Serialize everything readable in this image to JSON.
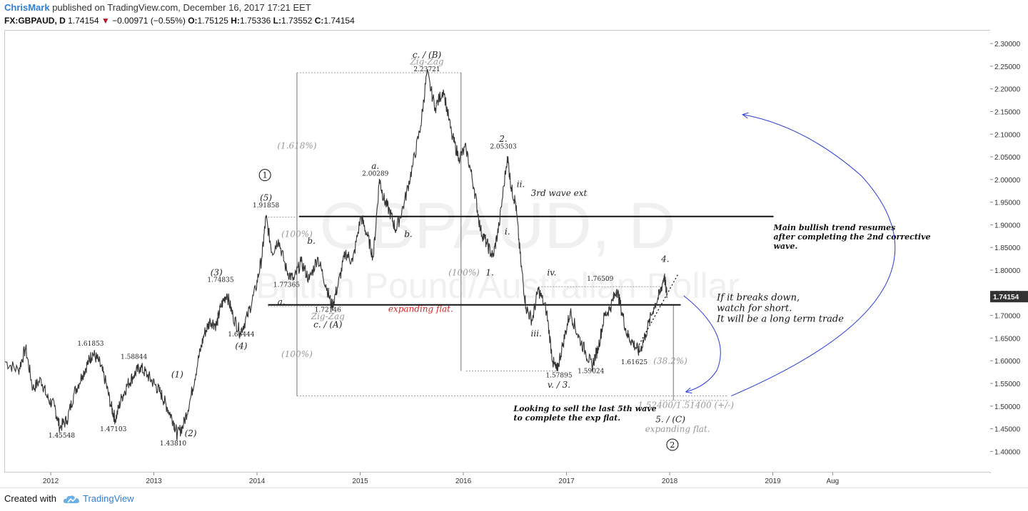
{
  "header": {
    "author": "ChrisMark",
    "published": "published on TradingView.com, December 16, 2017 17:21 EET",
    "symbol": "FX:GBPAUD, D",
    "last": "1.74154",
    "change": "−0.00971 (−0.55%)",
    "ohlc": {
      "o_label": "O:",
      "o": "1.75125",
      "h_label": "H:",
      "h": "1.75336",
      "l_label": "L:",
      "l": "1.73552",
      "c_label": "C:",
      "c": "1.74154"
    }
  },
  "watermark": {
    "symbol": "GBPAUD, D",
    "name": "British Pound/Australian Dollar"
  },
  "footer": {
    "created": "Created with",
    "brand": "TradingView"
  },
  "colors": {
    "price": "#333333",
    "level": "#111111",
    "fib": "#999999",
    "blue": "#2b3cd8",
    "badge": "#111111",
    "red": "#d62728"
  },
  "chart_data": {
    "type": "line",
    "series_name": "",
    "x_unit": "year",
    "xlim": [
      2011.55,
      2021.1
    ],
    "ylim": [
      1.355,
      2.33
    ],
    "y_ticks": [
      "2.30000",
      "2.25000",
      "2.20000",
      "2.15000",
      "2.10000",
      "2.05000",
      "2.00000",
      "1.95000",
      "1.90000",
      "1.85000",
      "1.80000",
      "1.75000",
      "1.70000",
      "1.65000",
      "1.60000",
      "1.55000",
      "1.50000",
      "1.45000",
      "1.40000"
    ],
    "y_tick_values": [
      2.3,
      2.25,
      2.2,
      2.15,
      2.1,
      2.05,
      2.0,
      1.95,
      1.9,
      1.85,
      1.8,
      1.75,
      1.7,
      1.65,
      1.6,
      1.55,
      1.5,
      1.45,
      1.4
    ],
    "x_ticks": [
      {
        "t": 2012.0,
        "label": "2012"
      },
      {
        "t": 2013.0,
        "label": "2013"
      },
      {
        "t": 2014.0,
        "label": "2014"
      },
      {
        "t": 2015.0,
        "label": "2015"
      },
      {
        "t": 2016.0,
        "label": "2016"
      },
      {
        "t": 2017.0,
        "label": "2017"
      },
      {
        "t": 2018.0,
        "label": "2018"
      },
      {
        "t": 2019.0,
        "label": "2019"
      },
      {
        "t": 2019.58,
        "label": "Aug"
      }
    ],
    "last_price_label": "1.74154",
    "last_price": 1.74154,
    "price_path": [
      [
        2011.55,
        1.6
      ],
      [
        2011.68,
        1.58
      ],
      [
        2011.75,
        1.63
      ],
      [
        2011.82,
        1.54
      ],
      [
        2011.9,
        1.56
      ],
      [
        2011.96,
        1.52
      ],
      [
        2012.03,
        1.5
      ],
      [
        2012.08,
        1.455
      ],
      [
        2012.15,
        1.47
      ],
      [
        2012.22,
        1.53
      ],
      [
        2012.3,
        1.57
      ],
      [
        2012.36,
        1.6
      ],
      [
        2012.4,
        1.6185
      ],
      [
        2012.46,
        1.6
      ],
      [
        2012.52,
        1.56
      ],
      [
        2012.58,
        1.5
      ],
      [
        2012.62,
        1.471
      ],
      [
        2012.68,
        1.52
      ],
      [
        2012.74,
        1.55
      ],
      [
        2012.8,
        1.57
      ],
      [
        2012.86,
        1.588
      ],
      [
        2012.93,
        1.57
      ],
      [
        2013.0,
        1.55
      ],
      [
        2013.06,
        1.53
      ],
      [
        2013.12,
        1.5
      ],
      [
        2013.18,
        1.47
      ],
      [
        2013.22,
        1.438
      ],
      [
        2013.28,
        1.46
      ],
      [
        2013.35,
        1.52
      ],
      [
        2013.42,
        1.6
      ],
      [
        2013.48,
        1.66
      ],
      [
        2013.54,
        1.69
      ],
      [
        2013.6,
        1.68
      ],
      [
        2013.64,
        1.72
      ],
      [
        2013.7,
        1.75
      ],
      [
        2013.76,
        1.7
      ],
      [
        2013.83,
        1.664
      ],
      [
        2013.9,
        1.7
      ],
      [
        2013.98,
        1.76
      ],
      [
        2014.04,
        1.83
      ],
      [
        2014.08,
        1.9186
      ],
      [
        2014.14,
        1.84
      ],
      [
        2014.2,
        1.87
      ],
      [
        2014.28,
        1.8
      ],
      [
        2014.35,
        1.78
      ],
      [
        2014.42,
        1.82
      ],
      [
        2014.5,
        1.78
      ],
      [
        2014.58,
        1.83
      ],
      [
        2014.66,
        1.77
      ],
      [
        2014.72,
        1.721
      ],
      [
        2014.78,
        1.77
      ],
      [
        2014.85,
        1.84
      ],
      [
        2014.92,
        1.82
      ],
      [
        2015.0,
        1.92
      ],
      [
        2015.06,
        1.88
      ],
      [
        2015.12,
        1.83
      ],
      [
        2015.18,
        2.003
      ],
      [
        2015.22,
        1.96
      ],
      [
        2015.28,
        1.93
      ],
      [
        2015.34,
        1.89
      ],
      [
        2015.42,
        1.95
      ],
      [
        2015.5,
        2.03
      ],
      [
        2015.58,
        2.12
      ],
      [
        2015.64,
        2.2372
      ],
      [
        2015.72,
        2.16
      ],
      [
        2015.8,
        2.2
      ],
      [
        2015.88,
        2.1
      ],
      [
        2015.95,
        2.05
      ],
      [
        2016.02,
        2.07
      ],
      [
        2016.1,
        1.98
      ],
      [
        2016.16,
        1.89
      ],
      [
        2016.22,
        1.86
      ],
      [
        2016.28,
        1.83
      ],
      [
        2016.34,
        1.9
      ],
      [
        2016.42,
        2.053
      ],
      [
        2016.46,
        1.98
      ],
      [
        2016.5,
        1.95
      ],
      [
        2016.55,
        1.82
      ],
      [
        2016.6,
        1.72
      ],
      [
        2016.66,
        1.69
      ],
      [
        2016.72,
        1.76
      ],
      [
        2016.8,
        1.71
      ],
      [
        2016.86,
        1.6
      ],
      [
        2016.9,
        1.579
      ],
      [
        2016.96,
        1.64
      ],
      [
        2017.03,
        1.71
      ],
      [
        2017.1,
        1.66
      ],
      [
        2017.18,
        1.62
      ],
      [
        2017.24,
        1.59
      ],
      [
        2017.3,
        1.63
      ],
      [
        2017.36,
        1.7
      ],
      [
        2017.42,
        1.72
      ],
      [
        2017.48,
        1.76
      ],
      [
        2017.52,
        1.72
      ],
      [
        2017.58,
        1.66
      ],
      [
        2017.64,
        1.64
      ],
      [
        2017.7,
        1.62
      ],
      [
        2017.76,
        1.66
      ],
      [
        2017.84,
        1.72
      ],
      [
        2017.9,
        1.75
      ],
      [
        2017.94,
        1.79
      ],
      [
        2017.97,
        1.741
      ]
    ],
    "wave_labels": [
      {
        "text": "c. / (B)",
        "t": 2015.64,
        "y": 2.27,
        "style": "black"
      },
      {
        "text": "Zig-Zag",
        "t": 2015.64,
        "y": 2.255,
        "style": "gray"
      },
      {
        "text": "2.23721",
        "t": 2015.64,
        "y": 2.24,
        "style": "num"
      },
      {
        "text": "2.",
        "t": 2016.38,
        "y": 2.085,
        "style": "black"
      },
      {
        "text": "2.05303",
        "t": 2016.38,
        "y": 2.07,
        "style": "num"
      },
      {
        "text": "ii.",
        "t": 2016.55,
        "y": 1.985,
        "style": "black"
      },
      {
        "text": "i.",
        "t": 2016.42,
        "y": 1.88,
        "style": "black"
      },
      {
        "text": "1.",
        "t": 2016.25,
        "y": 1.79,
        "style": "black"
      },
      {
        "text": "a.",
        "t": 2015.14,
        "y": 2.025,
        "style": "black"
      },
      {
        "text": "2.00289",
        "t": 2015.14,
        "y": 2.01,
        "style": "num"
      },
      {
        "text": "b.",
        "t": 2015.46,
        "y": 1.875,
        "style": "black"
      },
      {
        "text": "(5)",
        "t": 2014.08,
        "y": 1.955,
        "style": "black"
      },
      {
        "text": "1.91858",
        "t": 2014.08,
        "y": 1.94,
        "style": "num"
      },
      {
        "text": "b.",
        "t": 2014.52,
        "y": 1.86,
        "style": "black"
      },
      {
        "text": "a.",
        "t": 2014.23,
        "y": 1.725,
        "style": "black"
      },
      {
        "text": "1.77365",
        "t": 2014.28,
        "y": 1.765,
        "style": "num"
      },
      {
        "text": "1.72146",
        "t": 2014.68,
        "y": 1.71,
        "style": "num"
      },
      {
        "text": "Zig-Zag",
        "t": 2014.68,
        "y": 1.693,
        "style": "gray"
      },
      {
        "text": "c. / (A)",
        "t": 2014.68,
        "y": 1.675,
        "style": "black"
      },
      {
        "text": "(3)",
        "t": 2013.6,
        "y": 1.79,
        "style": "black"
      },
      {
        "text": "1.74835",
        "t": 2013.64,
        "y": 1.776,
        "style": "num"
      },
      {
        "text": "1.66444",
        "t": 2013.84,
        "y": 1.655,
        "style": "num"
      },
      {
        "text": "(4)",
        "t": 2013.84,
        "y": 1.628,
        "style": "black"
      },
      {
        "text": "(1)",
        "t": 2013.22,
        "y": 1.565,
        "style": "black"
      },
      {
        "text": "(2)",
        "t": 2013.35,
        "y": 1.435,
        "style": "black"
      },
      {
        "text": "1.43810",
        "t": 2013.18,
        "y": 1.415,
        "style": "num"
      },
      {
        "text": "1.61853",
        "t": 2012.38,
        "y": 1.635,
        "style": "num"
      },
      {
        "text": "1.58844",
        "t": 2012.8,
        "y": 1.606,
        "style": "num"
      },
      {
        "text": "1.45548",
        "t": 2012.1,
        "y": 1.432,
        "style": "num"
      },
      {
        "text": "1.47103",
        "t": 2012.6,
        "y": 1.446,
        "style": "num"
      },
      {
        "text": "iv.",
        "t": 2016.85,
        "y": 1.79,
        "style": "black"
      },
      {
        "text": "1.76509",
        "t": 2017.32,
        "y": 1.778,
        "style": "num"
      },
      {
        "text": "4.",
        "t": 2017.95,
        "y": 1.82,
        "style": "black"
      },
      {
        "text": "iii.",
        "t": 2016.7,
        "y": 1.655,
        "style": "black"
      },
      {
        "text": "1.57895",
        "t": 2016.92,
        "y": 1.565,
        "style": "num"
      },
      {
        "text": "v. / 3.",
        "t": 2016.92,
        "y": 1.542,
        "style": "black"
      },
      {
        "text": "1.59024",
        "t": 2017.23,
        "y": 1.574,
        "style": "num"
      },
      {
        "text": "1.61625",
        "t": 2017.65,
        "y": 1.594,
        "style": "num"
      },
      {
        "text": "3rd wave ext",
        "t": 2016.92,
        "y": 1.965,
        "style": "black"
      }
    ],
    "fib_labels": [
      {
        "text": "(1.618%)",
        "t": 2014.38,
        "y": 2.07
      },
      {
        "text": "(100%)",
        "t": 2014.38,
        "y": 1.875
      },
      {
        "text": "(100%)",
        "t": 2014.38,
        "y": 1.61
      },
      {
        "text": "(100%)",
        "t": 2016.0,
        "y": 1.79
      },
      {
        "text": "(38.2%)",
        "t": 2018.0,
        "y": 1.595
      },
      {
        "text": "1.52400/1.51400 (+/-)",
        "t": 2018.15,
        "y": 1.497
      },
      {
        "text": "expanding flat.",
        "t": 2018.07,
        "y": 1.445
      }
    ],
    "c_label": {
      "text": "5. / (C)",
      "t": 2018.0,
      "y": 1.466
    },
    "red_label": {
      "text": "expanding flat.",
      "t": 2015.58,
      "y": 1.71
    },
    "badges": [
      {
        "text": "1",
        "t": 2014.07,
        "y": 2.005
      },
      {
        "text": "2",
        "t": 2018.02,
        "y": 1.41
      }
    ],
    "notes": [
      {
        "lines": [
          "Main bullish trend resumes",
          "after completing the 2nd corrective",
          "wave."
        ],
        "t": 2019.0,
        "y": 1.89,
        "bold": true
      },
      {
        "lines": [
          "If it breaks down,",
          "watch for short.",
          "It will be a long term trade"
        ],
        "t": 2018.45,
        "y": 1.735,
        "bold": false
      },
      {
        "lines": [
          "Looking to sell the last 5th wave",
          "to complete the exp flat."
        ],
        "t": 2016.48,
        "y": 1.49,
        "bold": true
      }
    ],
    "levels": [
      {
        "t1": 2014.4,
        "t2": 2019.0,
        "y": 1.92,
        "w": 2
      },
      {
        "t1": 2014.1,
        "t2": 2018.1,
        "y": 1.725,
        "w": 2
      }
    ],
    "dotted": [
      {
        "t1": 2014.38,
        "t2": 2015.97,
        "y": 2.2372
      },
      {
        "t1": 2014.1,
        "t2": 2014.38,
        "y": 1.9186
      },
      {
        "t1": 2014.1,
        "t2": 2014.6,
        "y": 1.7215
      },
      {
        "t1": 2016.02,
        "t2": 2016.9,
        "y": 1.579
      },
      {
        "t1": 2016.75,
        "t2": 2017.95,
        "y": 1.765
      },
      {
        "t1": 2014.38,
        "t2": 2018.55,
        "y": 1.524
      },
      {
        "t1": 2017.9,
        "t2": 2018.55,
        "y": 1.514
      }
    ]
  }
}
